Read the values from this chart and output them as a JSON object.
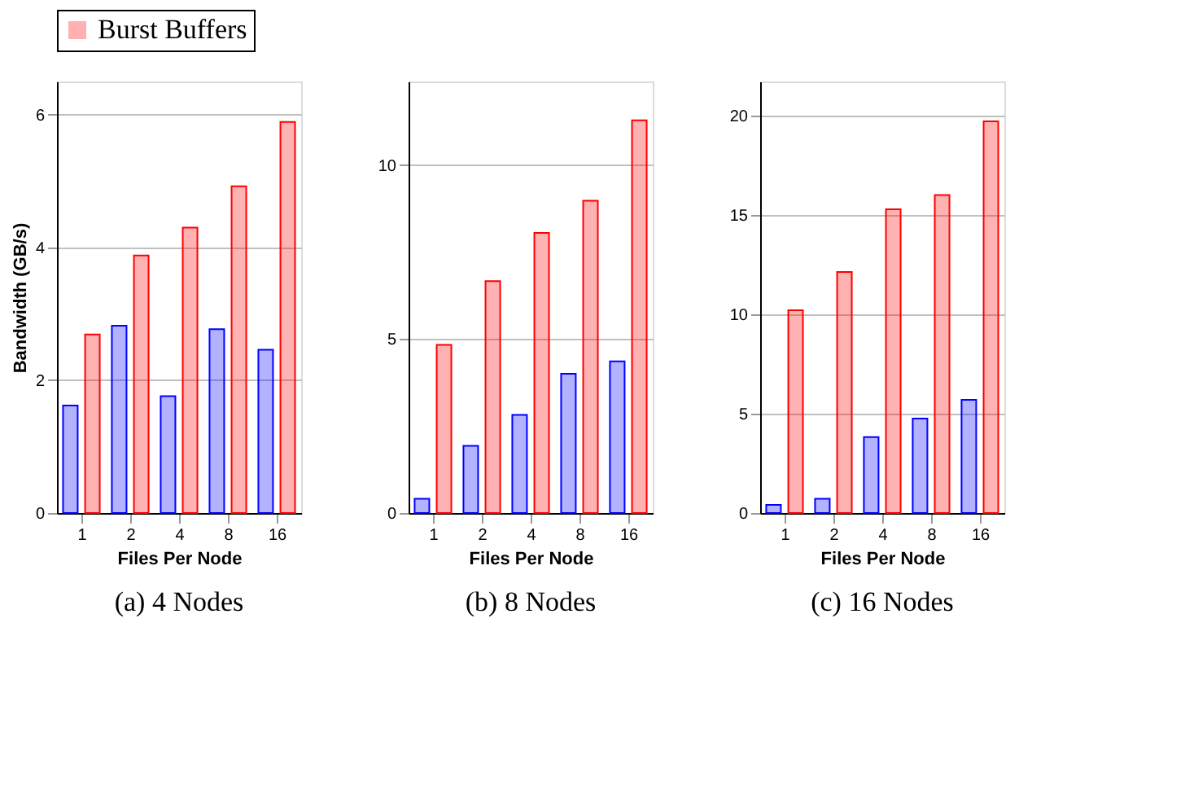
{
  "chart_data": [
    {
      "type": "bar",
      "title": "(a) 4 Nodes",
      "xlabel": "Files Per Node",
      "ylabel": "Bandwidth (GB/s)",
      "categories": [
        "1",
        "2",
        "4",
        "8",
        "16"
      ],
      "ylim": [
        0,
        6.5
      ],
      "yticks": [
        0,
        2,
        4,
        6
      ],
      "grid": "y",
      "legend": "top",
      "series": [
        {
          "color": "#0000ff",
          "values": [
            1.62,
            2.82,
            1.76,
            2.77,
            2.46
          ]
        },
        {
          "name": "Burst Buffers",
          "color": "#ff0000",
          "values": [
            2.69,
            3.88,
            4.3,
            4.92,
            5.89
          ]
        }
      ]
    },
    {
      "type": "bar",
      "title": "(b) 8 Nodes",
      "xlabel": "Files Per Node",
      "categories": [
        "1",
        "2",
        "4",
        "8",
        "16"
      ],
      "ylim": [
        0,
        12.4
      ],
      "yticks": [
        0,
        5,
        10
      ],
      "grid": "y",
      "legend": "top",
      "series": [
        {
          "color": "#0000ff",
          "values": [
            0.41,
            1.93,
            2.82,
            4.0,
            4.36
          ]
        },
        {
          "name": "Burst Buffers",
          "color": "#ff0000",
          "values": [
            4.83,
            6.66,
            8.05,
            8.97,
            11.28
          ]
        }
      ]
    },
    {
      "type": "bar",
      "title": "(c) 16 Nodes",
      "xlabel": "Files Per Node",
      "categories": [
        "1",
        "2",
        "4",
        "8",
        "16"
      ],
      "ylim": [
        0,
        21.7
      ],
      "yticks": [
        0,
        5,
        10,
        15,
        20
      ],
      "grid": "y",
      "legend": "top",
      "series": [
        {
          "color": "#0000ff",
          "values": [
            0.41,
            0.72,
            3.82,
            4.75,
            5.69
          ]
        },
        {
          "name": "Burst Buffers",
          "color": "#ff0000",
          "values": [
            10.2,
            12.12,
            15.27,
            15.99,
            19.69
          ]
        }
      ]
    }
  ]
}
